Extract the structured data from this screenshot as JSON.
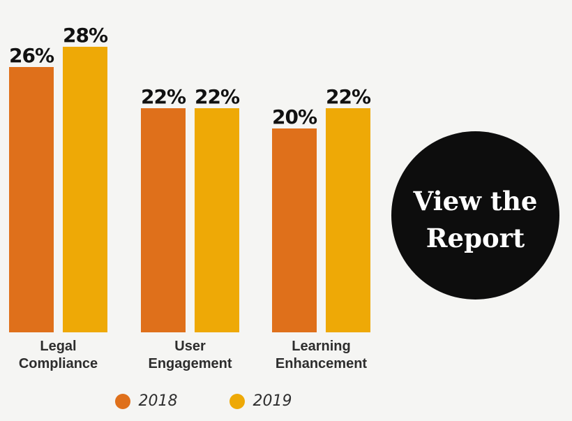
{
  "page": {
    "background_color": "#f5f5f3"
  },
  "chart_data": {
    "type": "bar",
    "title": "",
    "categories": [
      "Legal Compliance",
      "User Engagement",
      "Learning Enhancement"
    ],
    "series": [
      {
        "name": "2018",
        "color": "#df701b",
        "values": [
          26,
          22,
          20
        ]
      },
      {
        "name": "2019",
        "color": "#eea906",
        "values": [
          28,
          22,
          22
        ]
      }
    ],
    "value_suffix": "%",
    "ylim": [
      0,
      30
    ],
    "grid": false,
    "axes_visible": false,
    "legend_position": "bottom",
    "data_label_color": "#111111",
    "category_label_color": "#2d2d2d"
  },
  "cta_button": {
    "line1": "View the",
    "line2": "Report",
    "background_color": "#0d0d0d",
    "text_color": "#ffffff"
  }
}
